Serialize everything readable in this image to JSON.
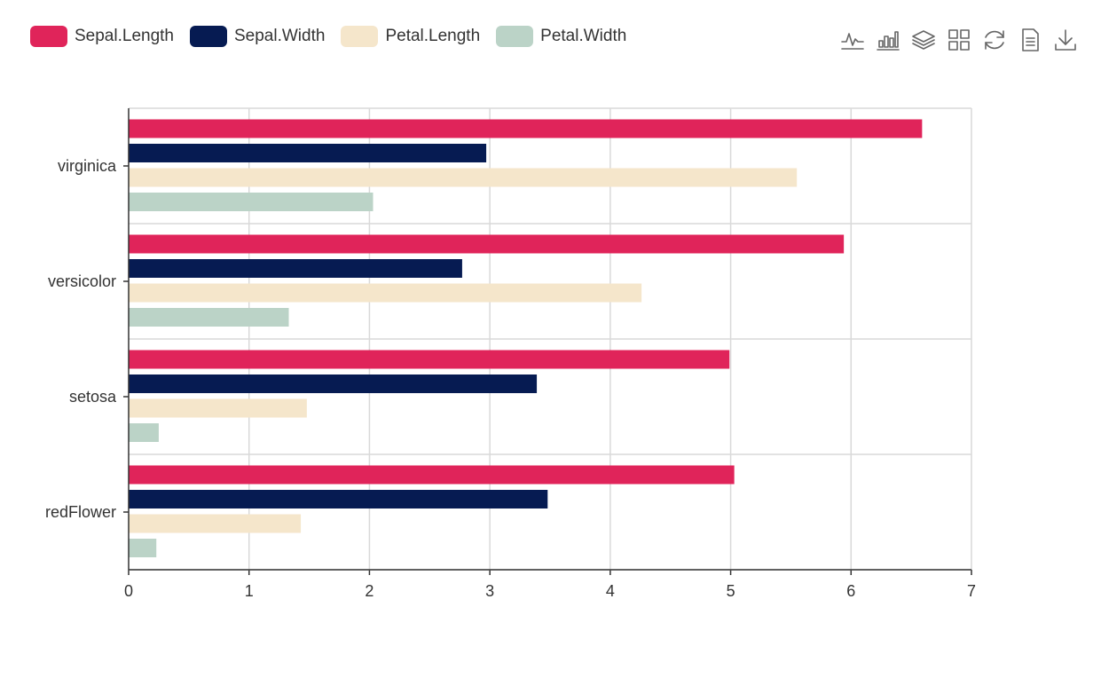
{
  "toolbox": {
    "tools": [
      {
        "name": "line-chart-icon"
      },
      {
        "name": "bar-chart-icon"
      },
      {
        "name": "stack-icon"
      },
      {
        "name": "tiled-icon"
      },
      {
        "name": "restore-icon"
      },
      {
        "name": "data-view-icon"
      },
      {
        "name": "save-image-icon"
      }
    ]
  },
  "chart_data": {
    "type": "bar",
    "orientation": "horizontal",
    "categories": [
      "redFlower",
      "setosa",
      "versicolor",
      "virginica"
    ],
    "series": [
      {
        "name": "Sepal.Length",
        "color": "#e0245a",
        "values": [
          5.03,
          4.99,
          5.94,
          6.59
        ]
      },
      {
        "name": "Sepal.Width",
        "color": "#061b52",
        "values": [
          3.48,
          3.39,
          2.77,
          2.97
        ]
      },
      {
        "name": "Petal.Length",
        "color": "#f5e6cb",
        "values": [
          1.43,
          1.48,
          4.26,
          5.55
        ]
      },
      {
        "name": "Petal.Width",
        "color": "#bbd3c7",
        "values": [
          0.23,
          0.25,
          1.33,
          2.03
        ]
      }
    ],
    "xlim": [
      0,
      7
    ],
    "x_ticks": [
      "0",
      "1",
      "2",
      "3",
      "4",
      "5",
      "6",
      "7"
    ],
    "grid": true,
    "legend_position": "top-left"
  }
}
